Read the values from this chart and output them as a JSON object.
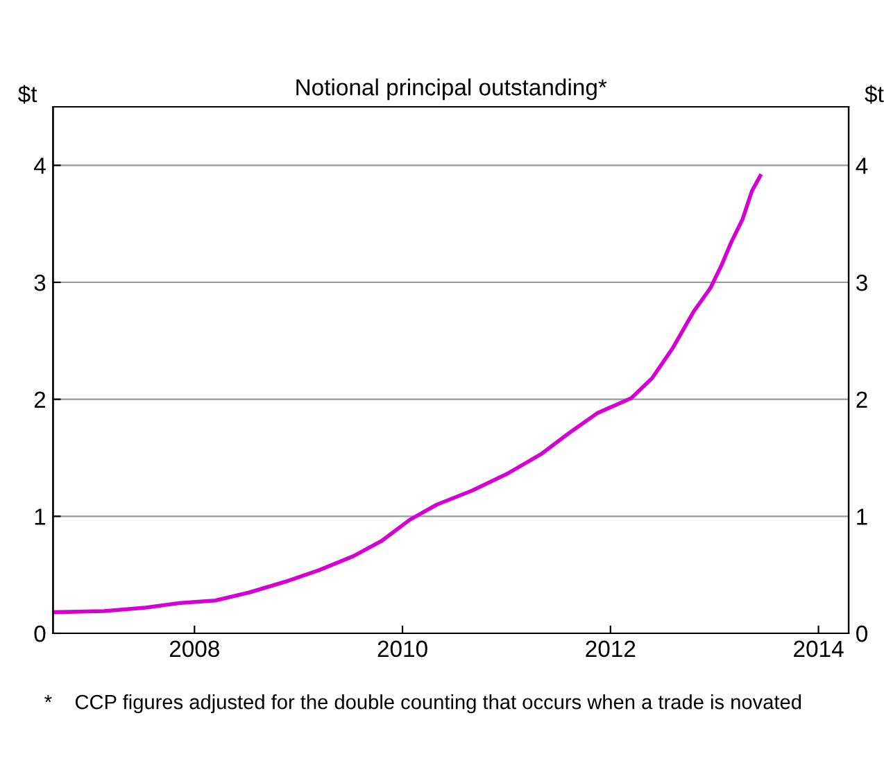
{
  "chart_data": {
    "type": "line",
    "title": "Notional principal outstanding*",
    "ylabel": "$t",
    "y2label": "$t",
    "x": [
      2006.64,
      2007.13,
      2007.53,
      2007.87,
      2008.2,
      2008.53,
      2008.87,
      2009.2,
      2009.53,
      2009.8,
      2010.07,
      2010.33,
      2010.67,
      2011.0,
      2011.33,
      2011.6,
      2011.87,
      2012.2,
      2012.4,
      2012.6,
      2012.8,
      2012.96,
      2013.07,
      2013.16,
      2013.27,
      2013.36,
      2013.44
    ],
    "series": [
      {
        "color": "#d400d4",
        "values": [
          0.18,
          0.19,
          0.22,
          0.26,
          0.28,
          0.35,
          0.44,
          0.54,
          0.66,
          0.79,
          0.97,
          1.1,
          1.22,
          1.36,
          1.53,
          1.71,
          1.88,
          2.01,
          2.18,
          2.44,
          2.75,
          2.95,
          3.15,
          3.34,
          3.54,
          3.78,
          3.91
        ]
      }
    ],
    "xlim": [
      2006.64,
      2014.29
    ],
    "xticks": [
      2008,
      2010,
      2012,
      2014
    ],
    "ylim": [
      0,
      4.5
    ],
    "yticks": [
      0,
      1,
      2,
      3,
      4
    ],
    "y2lim": [
      0,
      4.5
    ],
    "y2ticks": [
      0,
      1,
      2,
      3,
      4
    ],
    "grid": "y",
    "line_style": "solid",
    "annotations": [
      "*    CCP figures adjusted for the double counting that occurs when a trade is novated"
    ]
  }
}
